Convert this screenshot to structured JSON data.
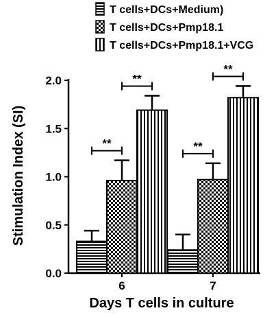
{
  "chart_data": {
    "type": "bar",
    "categories": [
      "6",
      "7"
    ],
    "series": [
      {
        "name": "T cells+DCs+Medium)",
        "pattern": "horizontal-stripes",
        "values": [
          0.33,
          0.24
        ],
        "errors": [
          0.11,
          0.16
        ]
      },
      {
        "name": "T cells+DCs+Pmp18.1",
        "pattern": "checkerboard",
        "values": [
          0.96,
          0.97
        ],
        "errors": [
          0.21,
          0.17
        ]
      },
      {
        "name": "T cells+DCs+Pmp18.1+VCG",
        "pattern": "vertical-stripes",
        "values": [
          1.69,
          1.82
        ],
        "errors": [
          0.15,
          0.12
        ]
      }
    ],
    "xlabel": "Days T cells in culture",
    "ylabel": "Stimulation Index (SI)",
    "ylim": [
      0,
      2.0
    ],
    "yticks": [
      "0.0",
      "0.5",
      "1.0",
      "1.5",
      "2.0"
    ],
    "significance": [
      {
        "category": "6",
        "from_series": 0,
        "to_series": 1,
        "label": "**"
      },
      {
        "category": "6",
        "from_series": 1,
        "to_series": 2,
        "label": "**"
      },
      {
        "category": "7",
        "from_series": 0,
        "to_series": 1,
        "label": "**"
      },
      {
        "category": "7",
        "from_series": 1,
        "to_series": 2,
        "label": "**"
      }
    ],
    "legend_position": "top-right",
    "grid": false,
    "colors": {
      "ink": "#000000",
      "fill": "#ffffff"
    }
  }
}
